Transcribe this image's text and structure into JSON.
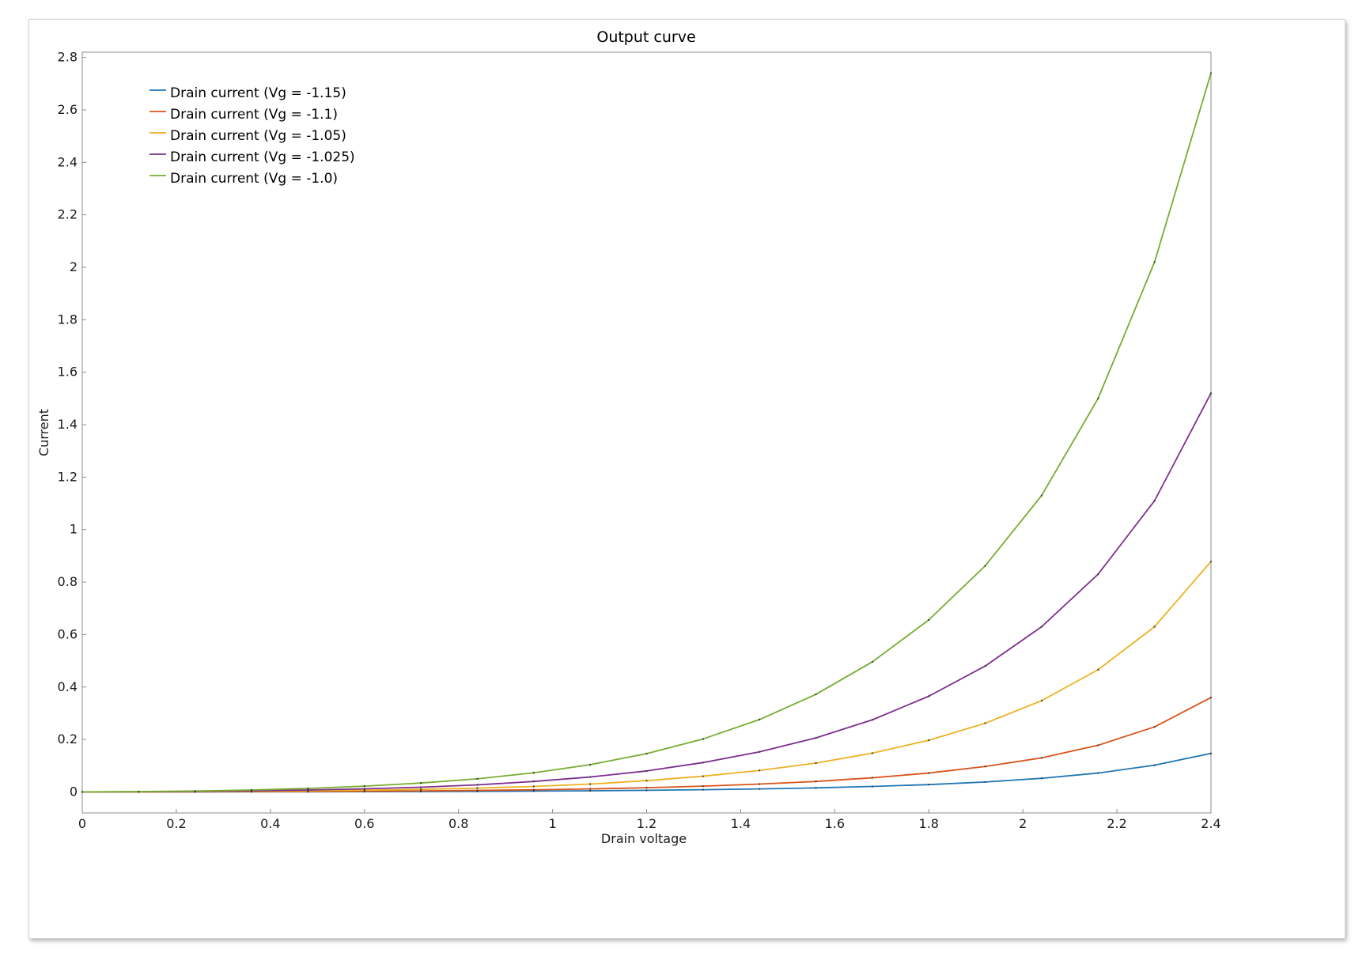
{
  "chart_data": {
    "type": "line",
    "title": "Output curve",
    "xlabel": "Drain voltage",
    "ylabel": "Current",
    "xlim": [
      0,
      2.4
    ],
    "ylim": [
      -0.08,
      2.82
    ],
    "xticks": [
      0,
      0.2,
      0.4,
      0.6,
      0.8,
      1,
      1.2,
      1.4,
      1.6,
      1.8,
      2,
      2.2,
      2.4
    ],
    "xtick_labels": [
      "0",
      "0.2",
      "0.4",
      "0.6",
      "0.8",
      "1",
      "1.2",
      "1.4",
      "1.6",
      "1.8",
      "2",
      "2.2",
      "2.4"
    ],
    "yticks": [
      0,
      0.2,
      0.4,
      0.6,
      0.8,
      1,
      1.2,
      1.4,
      1.6,
      1.8,
      2,
      2.2,
      2.4,
      2.6,
      2.8
    ],
    "ytick_labels": [
      "0",
      "0.2",
      "0.4",
      "0.6",
      "0.8",
      "1",
      "1.2",
      "1.4",
      "1.6",
      "1.8",
      "2",
      "2.2",
      "2.4",
      "2.6",
      "2.8"
    ],
    "grid": false,
    "legend_position": "top-left",
    "x": [
      0,
      0.12,
      0.24,
      0.36,
      0.48,
      0.6,
      0.72,
      0.84,
      0.96,
      1.08,
      1.2,
      1.32,
      1.44,
      1.56,
      1.68,
      1.8,
      1.92,
      2.04,
      2.16,
      2.28,
      2.4
    ],
    "series": [
      {
        "name": "Drain current (Vg = -1.15)",
        "color": "#1f77b4",
        "values": [
          0,
          0.0001,
          0.0002,
          0.0004,
          0.0007,
          0.001,
          0.0015,
          0.0022,
          0.0032,
          0.0045,
          0.0062,
          0.0085,
          0.0115,
          0.0155,
          0.021,
          0.028,
          0.038,
          0.052,
          0.072,
          0.102,
          0.147
        ]
      },
      {
        "name": "Drain current (Vg = -1.1)",
        "color": "#d95319",
        "values": [
          0,
          0.0002,
          0.0005,
          0.001,
          0.0017,
          0.0027,
          0.004,
          0.0058,
          0.0082,
          0.0115,
          0.016,
          0.022,
          0.03,
          0.04,
          0.054,
          0.072,
          0.097,
          0.13,
          0.178,
          0.248,
          0.36
        ]
      },
      {
        "name": "Drain current (Vg = -1.05)",
        "color": "#edb120",
        "values": [
          0,
          0.0004,
          0.001,
          0.0022,
          0.004,
          0.0065,
          0.0098,
          0.0145,
          0.021,
          0.03,
          0.043,
          0.06,
          0.082,
          0.11,
          0.148,
          0.197,
          0.262,
          0.348,
          0.466,
          0.63,
          0.878
        ]
      },
      {
        "name": "Drain current (Vg = -1.025)",
        "color": "#7e2f8e",
        "values": [
          0,
          0.0007,
          0.002,
          0.0042,
          0.0075,
          0.012,
          0.018,
          0.027,
          0.04,
          0.057,
          0.08,
          0.112,
          0.153,
          0.206,
          0.275,
          0.365,
          0.48,
          0.63,
          0.83,
          1.11,
          1.52
        ]
      },
      {
        "name": "Drain current (Vg = -1.0)",
        "color": "#77ac30",
        "values": [
          0,
          0.0012,
          0.0035,
          0.0075,
          0.0135,
          0.022,
          0.034,
          0.05,
          0.073,
          0.104,
          0.146,
          0.202,
          0.276,
          0.372,
          0.496,
          0.656,
          0.862,
          1.13,
          1.5,
          2.02,
          2.74
        ]
      }
    ]
  }
}
